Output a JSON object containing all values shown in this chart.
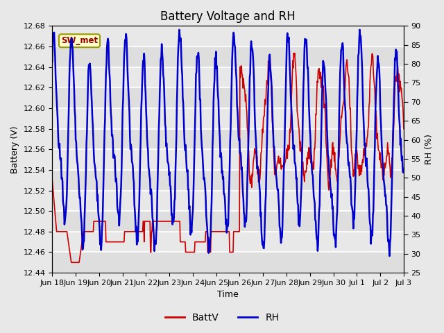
{
  "title": "Battery Voltage and RH",
  "xlabel": "Time",
  "ylabel_left": "Battery (V)",
  "ylabel_right": "RH (%)",
  "ylim_left": [
    12.44,
    12.68
  ],
  "ylim_right": [
    25,
    90
  ],
  "yticks_left": [
    12.44,
    12.46,
    12.48,
    12.5,
    12.52,
    12.54,
    12.56,
    12.58,
    12.6,
    12.62,
    12.64,
    12.66,
    12.68
  ],
  "yticks_right": [
    25,
    30,
    35,
    40,
    45,
    50,
    55,
    60,
    65,
    70,
    75,
    80,
    85,
    90
  ],
  "xtick_labels": [
    "Jun 18",
    "Jun 19",
    "Jun 20",
    "Jun 21",
    "Jun 22",
    "Jun 23",
    "Jun 24",
    "Jun 25",
    "Jun 26",
    "Jun 27",
    "Jun 28",
    "Jun 29",
    "Jun 30",
    "Jul 1",
    "Jul 2",
    "Jul 3"
  ],
  "legend_labels": [
    "BattV",
    "RH"
  ],
  "color_battv": "#cc0000",
  "color_rh": "#0000cc",
  "label_box_text": "SW_met",
  "label_box_bg": "#ffffcc",
  "label_box_border": "#999900",
  "bg_color": "#e8e8e8",
  "plot_bg_color": "#e8e8e8",
  "grid_color": "#ffffff",
  "title_fontsize": 12,
  "axis_label_fontsize": 9,
  "tick_fontsize": 8,
  "legend_fontsize": 10,
  "linewidth_batt": 1.2,
  "linewidth_rh": 1.8,
  "n_days": 15,
  "n_points": 720
}
